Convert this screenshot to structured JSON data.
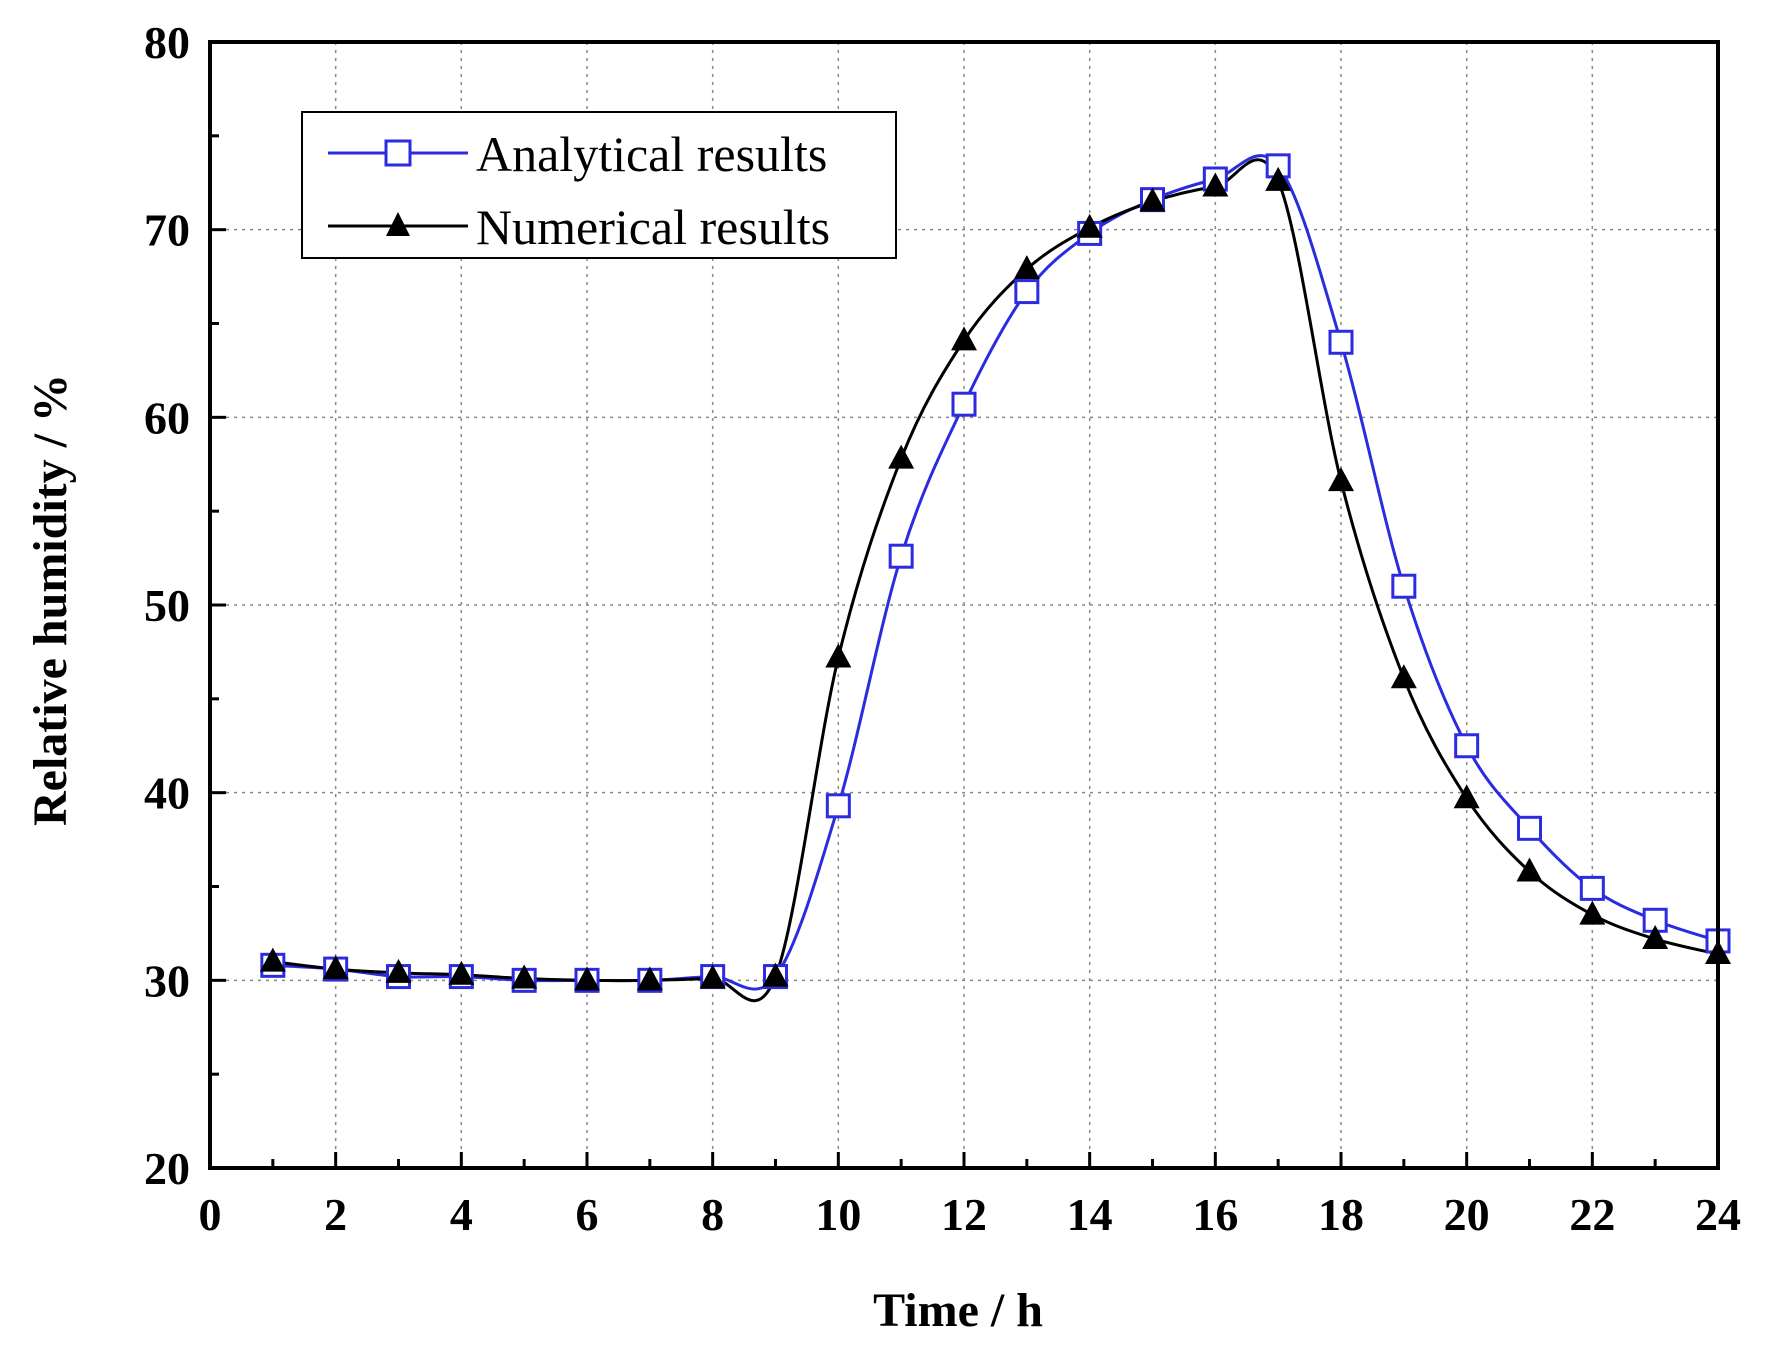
{
  "chart_data": {
    "type": "line",
    "title": "",
    "xlabel": "Time / h",
    "ylabel": "Relative humidity / %",
    "xlim": [
      0,
      24
    ],
    "ylim": [
      20,
      80
    ],
    "xticks": [
      "0",
      "2",
      "4",
      "6",
      "8",
      "10",
      "12",
      "14",
      "16",
      "18",
      "20",
      "22",
      "24"
    ],
    "yticks": [
      "20",
      "30",
      "40",
      "50",
      "60",
      "70",
      "80"
    ],
    "grid": true,
    "legend_position": "top-left",
    "x": [
      1,
      2,
      3,
      4,
      5,
      6,
      7,
      8,
      9,
      10,
      11,
      12,
      13,
      14,
      15,
      16,
      17,
      18,
      19,
      20,
      21,
      22,
      23,
      24
    ],
    "series": [
      {
        "name": "Analytical results",
        "color": "#2b2be0",
        "marker": "open-square",
        "values": [
          30.8,
          30.6,
          30.2,
          30.2,
          30.0,
          30.0,
          30.0,
          30.2,
          30.2,
          39.3,
          52.6,
          60.7,
          66.7,
          69.8,
          71.6,
          72.7,
          73.4,
          64.0,
          51.0,
          42.5,
          38.1,
          34.9,
          33.2,
          32.1
        ]
      },
      {
        "name": "Numerical results",
        "color": "#000000",
        "marker": "filled-triangle",
        "values": [
          31.0,
          30.6,
          30.4,
          30.3,
          30.1,
          30.0,
          30.0,
          30.1,
          30.2,
          47.2,
          57.8,
          64.1,
          67.9,
          70.1,
          71.5,
          72.3,
          72.6,
          56.6,
          46.1,
          39.7,
          35.8,
          33.5,
          32.2,
          31.4
        ]
      }
    ]
  }
}
